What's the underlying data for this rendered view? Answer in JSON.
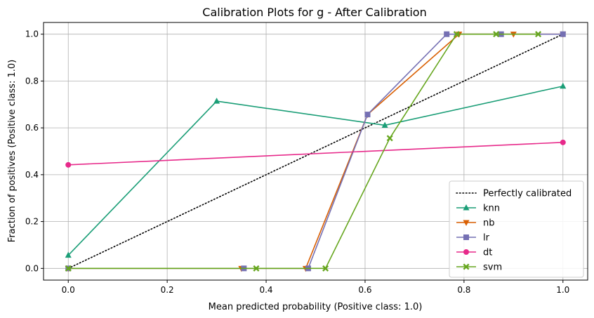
{
  "chart_data": {
    "type": "line",
    "title": "Calibration Plots for g - After Calibration",
    "xlabel": "Mean predicted probability (Positive class: 1.0)",
    "ylabel": "Fraction of positives (Positive class: 1.0)",
    "xlim": [
      -0.05,
      1.05
    ],
    "ylim": [
      -0.05,
      1.05
    ],
    "xticks": [
      "0.0",
      "0.2",
      "0.4",
      "0.6",
      "0.8",
      "1.0"
    ],
    "yticks": [
      "0.0",
      "0.2",
      "0.4",
      "0.6",
      "0.8",
      "1.0"
    ],
    "grid": true,
    "legend_position": "lower-right",
    "reference": {
      "name": "Perfectly calibrated",
      "x": [
        0,
        1
      ],
      "y": [
        0,
        1
      ],
      "color": "#000000",
      "style": "dotted"
    },
    "series": [
      {
        "name": "knn",
        "color": "#1b9e77",
        "marker": "triangle-up",
        "x": [
          0.0,
          0.3,
          0.64,
          1.0
        ],
        "y": [
          0.056,
          0.714,
          0.611,
          0.778
        ]
      },
      {
        "name": "nb",
        "color": "#d95f02",
        "marker": "triangle-down",
        "x": [
          0.0,
          0.35,
          0.48,
          0.605,
          0.79,
          0.9,
          1.0
        ],
        "y": [
          0.0,
          0.0,
          0.0,
          0.657,
          1.0,
          1.0,
          1.0
        ]
      },
      {
        "name": "lr",
        "color": "#7570b3",
        "marker": "square",
        "x": [
          0.0,
          0.355,
          0.485,
          0.605,
          0.765,
          0.875,
          1.0
        ],
        "y": [
          0.0,
          0.0,
          0.0,
          0.657,
          1.0,
          1.0,
          1.0
        ]
      },
      {
        "name": "dt",
        "color": "#e7298a",
        "marker": "circle",
        "x": [
          0.0,
          1.0
        ],
        "y": [
          0.442,
          0.538
        ]
      },
      {
        "name": "svm",
        "color": "#66a61e",
        "marker": "x-filled",
        "x": [
          0.0,
          0.38,
          0.52,
          0.65,
          0.785,
          0.865,
          0.95
        ],
        "y": [
          0.0,
          0.0,
          0.0,
          0.556,
          1.0,
          1.0,
          1.0
        ]
      }
    ]
  }
}
